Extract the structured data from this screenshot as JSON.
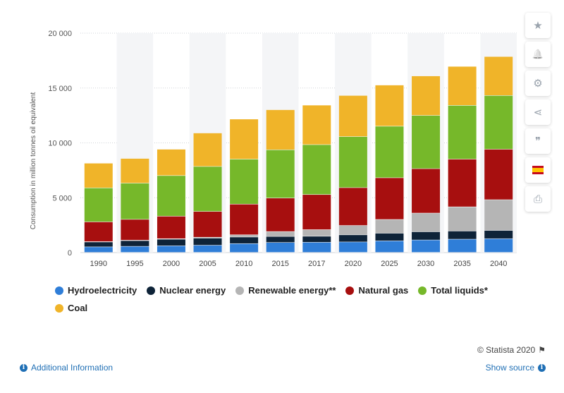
{
  "chart_data": {
    "type": "bar",
    "stacked": true,
    "categories": [
      "1990",
      "1995",
      "2000",
      "2005",
      "2010",
      "2015",
      "2017",
      "2020",
      "2025",
      "2030",
      "2035",
      "2040"
    ],
    "ylabel": "Consumption in million tonnes oil equivalent",
    "ylim": [
      0,
      20000
    ],
    "yticks": [
      0,
      5000,
      10000,
      15000,
      20000
    ],
    "ytick_labels": [
      "0",
      "5 000",
      "10 000",
      "15 000",
      "20 000"
    ],
    "grid": true,
    "legend_position": "bottom",
    "series": [
      {
        "name": "Hydroelectricity",
        "color": "#2f7ed8",
        "values": [
          500,
          550,
          600,
          650,
          800,
          900,
          920,
          950,
          1050,
          1130,
          1200,
          1250
        ]
      },
      {
        "name": "Nuclear energy",
        "color": "#0e2338",
        "values": [
          450,
          520,
          600,
          650,
          600,
          550,
          550,
          650,
          700,
          750,
          750,
          750
        ]
      },
      {
        "name": "Renewable energy**",
        "color": "#b5b5b5",
        "values": [
          30,
          40,
          50,
          80,
          200,
          450,
          600,
          850,
          1250,
          1700,
          2200,
          2800
        ]
      },
      {
        "name": "Natural gas",
        "color": "#a70f0f",
        "values": [
          1800,
          1900,
          2050,
          2350,
          2800,
          3050,
          3200,
          3450,
          3800,
          4050,
          4350,
          4600
        ]
      },
      {
        "name": "Total liquids*",
        "color": "#76b82a",
        "values": [
          3100,
          3300,
          3700,
          4100,
          4100,
          4400,
          4550,
          4650,
          4700,
          4850,
          4900,
          4900
        ]
      },
      {
        "name": "Coal",
        "color": "#f0b429",
        "values": [
          2250,
          2250,
          2400,
          3050,
          3650,
          3650,
          3600,
          3750,
          3750,
          3600,
          3550,
          3550
        ]
      }
    ]
  },
  "toolbar": {
    "icons": [
      "star-icon",
      "bell-icon",
      "gear-icon",
      "share-icon",
      "quote-icon",
      "flag-icon",
      "print-icon"
    ],
    "glyphs": {
      "star": "★",
      "bell": "🔔",
      "gear": "⚙",
      "share": "⋖",
      "quote": "❞",
      "print": "⎙"
    }
  },
  "footer": {
    "credit": "© Statista 2020",
    "additional_info": "Additional Information",
    "show_source": "Show source",
    "info_glyph": "i",
    "flag_glyph": "⚑"
  }
}
